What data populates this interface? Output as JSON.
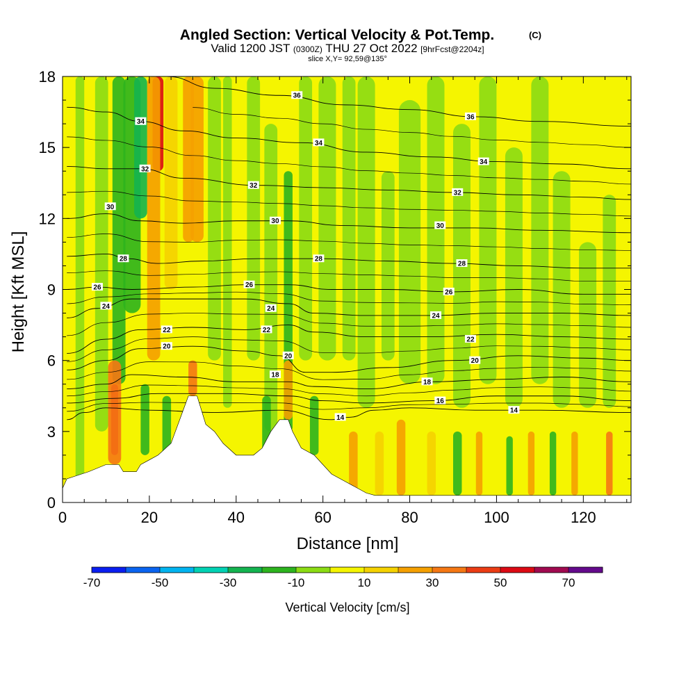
{
  "header": {
    "title_main": "Angled Section: Vertical Velocity & Pot.Temp.",
    "title_mark": "(C)",
    "valid_prefix": "Valid 1200 JST",
    "valid_utc": "(0300Z)",
    "valid_date": "THU 27 Oct 2022",
    "valid_fcst": "[9hrFcst@2204z]",
    "slice": "slice X,Y= 92,59@135°"
  },
  "colorbar": {
    "label": "Vertical Velocity [cm/s]",
    "tick_labels": [
      "-70",
      "-50",
      "-30",
      "-10",
      "10",
      "30",
      "50",
      "70"
    ],
    "colors": [
      "#0a1ef0",
      "#0a64f0",
      "#00b4f0",
      "#00d2b4",
      "#14b450",
      "#2db41e",
      "#8cdc14",
      "#f5f500",
      "#f5d200",
      "#f5a000",
      "#f57814",
      "#eb3c14",
      "#dc0a14",
      "#a00a50",
      "#640a8c"
    ]
  },
  "chart_data": {
    "type": "heatmap",
    "title": "Angled Section: Vertical Velocity & Pot.Temp.",
    "xlabel": "Distance [nm]",
    "ylabel": "Height [Kft MSL]",
    "xlim": [
      0,
      131
    ],
    "ylim": [
      0,
      18
    ],
    "x_ticks": [
      0,
      20,
      40,
      60,
      80,
      100,
      120
    ],
    "y_ticks": [
      0,
      3,
      6,
      9,
      12,
      15,
      18
    ],
    "x_tick_labels": [
      "0",
      "20",
      "40",
      "60",
      "80",
      "100",
      "120"
    ],
    "y_tick_labels": [
      "0",
      "3",
      "6",
      "9",
      "12",
      "15",
      "18"
    ],
    "vertical_velocity_bins_cm_s": [
      -70,
      -60,
      -50,
      -40,
      -30,
      -20,
      -10,
      0,
      10,
      20,
      30,
      40,
      50,
      60,
      70,
      80
    ],
    "terrain_kft": [
      [
        0,
        0.6
      ],
      [
        1,
        1
      ],
      [
        6,
        1.3
      ],
      [
        10,
        1.6
      ],
      [
        13,
        1.6
      ],
      [
        14,
        1.3
      ],
      [
        17,
        1.3
      ],
      [
        18,
        1.6
      ],
      [
        20,
        1.8
      ],
      [
        22,
        2.0
      ],
      [
        25,
        2.5
      ],
      [
        26,
        3.0
      ],
      [
        28,
        4.0
      ],
      [
        29,
        4.5
      ],
      [
        31,
        4.5
      ],
      [
        33,
        3.3
      ],
      [
        35,
        3.0
      ],
      [
        37,
        2.5
      ],
      [
        40,
        2.0
      ],
      [
        44,
        2.0
      ],
      [
        46,
        2.3
      ],
      [
        48,
        3.0
      ],
      [
        50,
        3.5
      ],
      [
        52,
        3.5
      ],
      [
        53,
        3.0
      ],
      [
        55,
        2.3
      ],
      [
        58,
        2.0
      ],
      [
        60,
        1.6
      ],
      [
        62,
        1.2
      ],
      [
        66,
        0.8
      ],
      [
        70,
        0.4
      ],
      [
        72,
        0.3
      ],
      [
        131,
        0.3
      ]
    ],
    "theta_contours": [
      {
        "level": 14,
        "label": "14",
        "points": [
          [
            1,
            3.5
          ],
          [
            5,
            3.8
          ],
          [
            10,
            4.0
          ],
          [
            20,
            3.9
          ],
          [
            35,
            3.8
          ],
          [
            50,
            3.9
          ],
          [
            62,
            3.5
          ],
          [
            66,
            3.6
          ],
          [
            72,
            3.9
          ],
          [
            80,
            4.0
          ],
          [
            95,
            3.9
          ],
          [
            110,
            3.9
          ],
          [
            131,
            3.8
          ]
        ],
        "labels": [
          [
            64,
            3.6
          ],
          [
            104,
            3.9
          ]
        ]
      },
      {
        "level": 16,
        "label": "16",
        "points": [
          [
            1,
            4.2
          ],
          [
            12,
            4.4
          ],
          [
            22,
            4.6
          ],
          [
            38,
            4.6
          ],
          [
            52,
            4.5
          ],
          [
            60,
            4.3
          ],
          [
            70,
            4.2
          ],
          [
            85,
            4.3
          ],
          [
            100,
            4.5
          ],
          [
            115,
            4.5
          ],
          [
            131,
            4.3
          ]
        ],
        "labels": [
          [
            87,
            4.3
          ]
        ]
      },
      {
        "level": 18,
        "label": "18",
        "points": [
          [
            1,
            4.8
          ],
          [
            10,
            5.0
          ],
          [
            16,
            5.4
          ],
          [
            28,
            5.3
          ],
          [
            40,
            5.1
          ],
          [
            52,
            5.1
          ],
          [
            58,
            4.9
          ],
          [
            70,
            4.8
          ],
          [
            85,
            5.1
          ],
          [
            100,
            5.2
          ],
          [
            115,
            5.3
          ],
          [
            131,
            5.1
          ]
        ],
        "labels": [
          [
            49,
            5.4
          ],
          [
            84,
            5.1
          ]
        ]
      },
      {
        "level": 20,
        "label": "20",
        "points": [
          [
            1,
            5.6
          ],
          [
            10,
            6.0
          ],
          [
            18,
            6.5
          ],
          [
            30,
            6.6
          ],
          [
            42,
            6.4
          ],
          [
            50,
            6.2
          ],
          [
            56,
            5.5
          ],
          [
            62,
            5.5
          ],
          [
            75,
            5.7
          ],
          [
            90,
            6.0
          ],
          [
            105,
            6.2
          ],
          [
            120,
            6.1
          ],
          [
            131,
            6.0
          ]
        ],
        "labels": [
          [
            24,
            6.6
          ],
          [
            52,
            6.2
          ],
          [
            95,
            6.0
          ]
        ]
      },
      {
        "level": 22,
        "label": "22",
        "points": [
          [
            1,
            6.3
          ],
          [
            10,
            6.9
          ],
          [
            18,
            7.3
          ],
          [
            30,
            7.4
          ],
          [
            42,
            7.3
          ],
          [
            52,
            7.5
          ],
          [
            58,
            7.2
          ],
          [
            70,
            7.0
          ],
          [
            85,
            7.0
          ],
          [
            100,
            7.1
          ],
          [
            115,
            7.0
          ],
          [
            131,
            6.9
          ]
        ],
        "labels": [
          [
            24,
            7.3
          ],
          [
            47,
            7.3
          ],
          [
            94,
            6.9
          ]
        ]
      },
      {
        "level": 24,
        "label": "24",
        "points": [
          [
            1,
            7.8
          ],
          [
            8,
            8.2
          ],
          [
            16,
            8.6
          ],
          [
            30,
            8.6
          ],
          [
            42,
            8.6
          ],
          [
            52,
            8.4
          ],
          [
            58,
            8.0
          ],
          [
            70,
            7.9
          ],
          [
            85,
            7.9
          ],
          [
            100,
            8.0
          ],
          [
            115,
            8.0
          ],
          [
            131,
            7.9
          ]
        ],
        "labels": [
          [
            10,
            8.3
          ],
          [
            48,
            8.2
          ],
          [
            86,
            7.9
          ]
        ]
      },
      {
        "level": 26,
        "label": "26",
        "points": [
          [
            1,
            9.0
          ],
          [
            8,
            9.1
          ],
          [
            16,
            9.0
          ],
          [
            30,
            9.1
          ],
          [
            42,
            9.2
          ],
          [
            52,
            9.2
          ],
          [
            62,
            9.0
          ],
          [
            75,
            9.0
          ],
          [
            90,
            8.9
          ],
          [
            105,
            9.0
          ],
          [
            120,
            8.8
          ],
          [
            131,
            8.8
          ]
        ],
        "labels": [
          [
            8,
            9.1
          ],
          [
            43,
            9.2
          ],
          [
            89,
            8.9
          ]
        ]
      },
      {
        "level": 28,
        "label": "28",
        "points": [
          [
            1,
            10.4
          ],
          [
            10,
            10.5
          ],
          [
            15,
            10.3
          ],
          [
            22,
            10.1
          ],
          [
            32,
            10.2
          ],
          [
            45,
            10.3
          ],
          [
            60,
            10.3
          ],
          [
            75,
            10.2
          ],
          [
            90,
            10.1
          ],
          [
            105,
            10.0
          ],
          [
            120,
            9.9
          ],
          [
            131,
            9.9
          ]
        ],
        "labels": [
          [
            14,
            10.3
          ],
          [
            59,
            10.3
          ],
          [
            92,
            10.1
          ]
        ]
      },
      {
        "level": 30,
        "label": "30",
        "points": [
          [
            1,
            12.0
          ],
          [
            10,
            12.2
          ],
          [
            18,
            11.9
          ],
          [
            28,
            11.8
          ],
          [
            40,
            11.9
          ],
          [
            52,
            11.9
          ],
          [
            65,
            11.7
          ],
          [
            80,
            11.6
          ],
          [
            95,
            11.6
          ],
          [
            110,
            11.5
          ],
          [
            131,
            11.4
          ]
        ],
        "labels": [
          [
            11,
            12.5
          ],
          [
            49,
            11.9
          ],
          [
            87,
            11.7
          ]
        ]
      },
      {
        "level": 32,
        "label": "32",
        "points": [
          [
            1,
            14.2
          ],
          [
            10,
            14.1
          ],
          [
            18,
            14.1
          ],
          [
            28,
            13.7
          ],
          [
            45,
            13.4
          ],
          [
            60,
            13.3
          ],
          [
            75,
            13.2
          ],
          [
            90,
            13.1
          ],
          [
            105,
            13.0
          ],
          [
            120,
            12.9
          ],
          [
            131,
            12.8
          ]
        ],
        "labels": [
          [
            19,
            14.1
          ],
          [
            44,
            13.4
          ],
          [
            91,
            13.1
          ]
        ]
      },
      {
        "level": 34,
        "label": "34",
        "points": [
          [
            1,
            16.7
          ],
          [
            10,
            16.5
          ],
          [
            18,
            16.1
          ],
          [
            28,
            15.7
          ],
          [
            40,
            15.4
          ],
          [
            55,
            15.2
          ],
          [
            70,
            14.8
          ],
          [
            85,
            14.6
          ],
          [
            100,
            14.4
          ],
          [
            115,
            14.3
          ],
          [
            131,
            14.1
          ]
        ],
        "labels": [
          [
            18,
            16.1
          ],
          [
            59,
            15.2
          ],
          [
            97,
            14.4
          ]
        ]
      },
      {
        "level": 36,
        "label": "36",
        "points": [
          [
            24,
            18.0
          ],
          [
            35,
            17.5
          ],
          [
            50,
            17.2
          ],
          [
            65,
            16.8
          ],
          [
            80,
            16.6
          ],
          [
            95,
            16.3
          ],
          [
            110,
            16.1
          ],
          [
            131,
            15.9
          ]
        ],
        "labels": [
          [
            54,
            17.2
          ],
          [
            94,
            16.3
          ]
        ]
      }
    ]
  }
}
